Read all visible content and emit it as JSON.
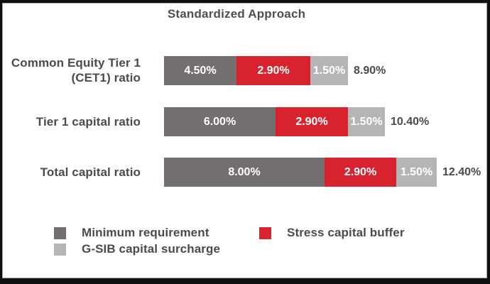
{
  "title": "Standardized Approach",
  "chart_data": {
    "type": "bar",
    "orientation": "horizontal",
    "stacked": true,
    "title": "Standardized Approach",
    "categories": [
      "Common Equity Tier 1 (CET1) ratio",
      "Tier 1 capital ratio",
      "Total capital ratio"
    ],
    "series": [
      {
        "name": "Minimum requirement",
        "color": "#736f6f",
        "values": [
          4.5,
          6.0,
          8.0
        ]
      },
      {
        "name": "Stress capital buffer",
        "color": "#d8232e",
        "values": [
          2.9,
          2.9,
          2.9
        ]
      },
      {
        "name": "G-SIB capital surcharge",
        "color": "#b7b4b4",
        "values": [
          1.5,
          1.5,
          1.5
        ]
      }
    ],
    "totals": [
      8.9,
      10.4,
      12.4
    ],
    "unit": "%",
    "value_labels": true,
    "grid": false,
    "legend_position": "bottom"
  },
  "rows": [
    {
      "label_lines": [
        "Common Equity Tier 1",
        "(CET1) ratio"
      ],
      "segments": [
        "4.50%",
        "2.90%",
        "1.50%"
      ],
      "total": "8.90%"
    },
    {
      "label_lines": [
        "Tier 1 capital ratio",
        ""
      ],
      "segments": [
        "6.00%",
        "2.90%",
        "1.50%"
      ],
      "total": "10.40%"
    },
    {
      "label_lines": [
        "Total capital ratio",
        ""
      ],
      "segments": [
        "8.00%",
        "2.90%",
        "1.50%"
      ],
      "total": "12.40%"
    }
  ],
  "legend": {
    "items": [
      {
        "label": "Minimum requirement",
        "color": "#736f6f"
      },
      {
        "label": "Stress capital buffer",
        "color": "#d8232e"
      },
      {
        "label": "G-SIB capital surcharge",
        "color": "#b7b4b4"
      }
    ]
  },
  "colors": {
    "minimum_requirement": "#736f6f",
    "stress_capital_buffer": "#d8232e",
    "gsib_capital_surcharge": "#b7b4b4",
    "text": "#4d4a4a",
    "frame_border": "#101010",
    "background": "#ffffff"
  }
}
